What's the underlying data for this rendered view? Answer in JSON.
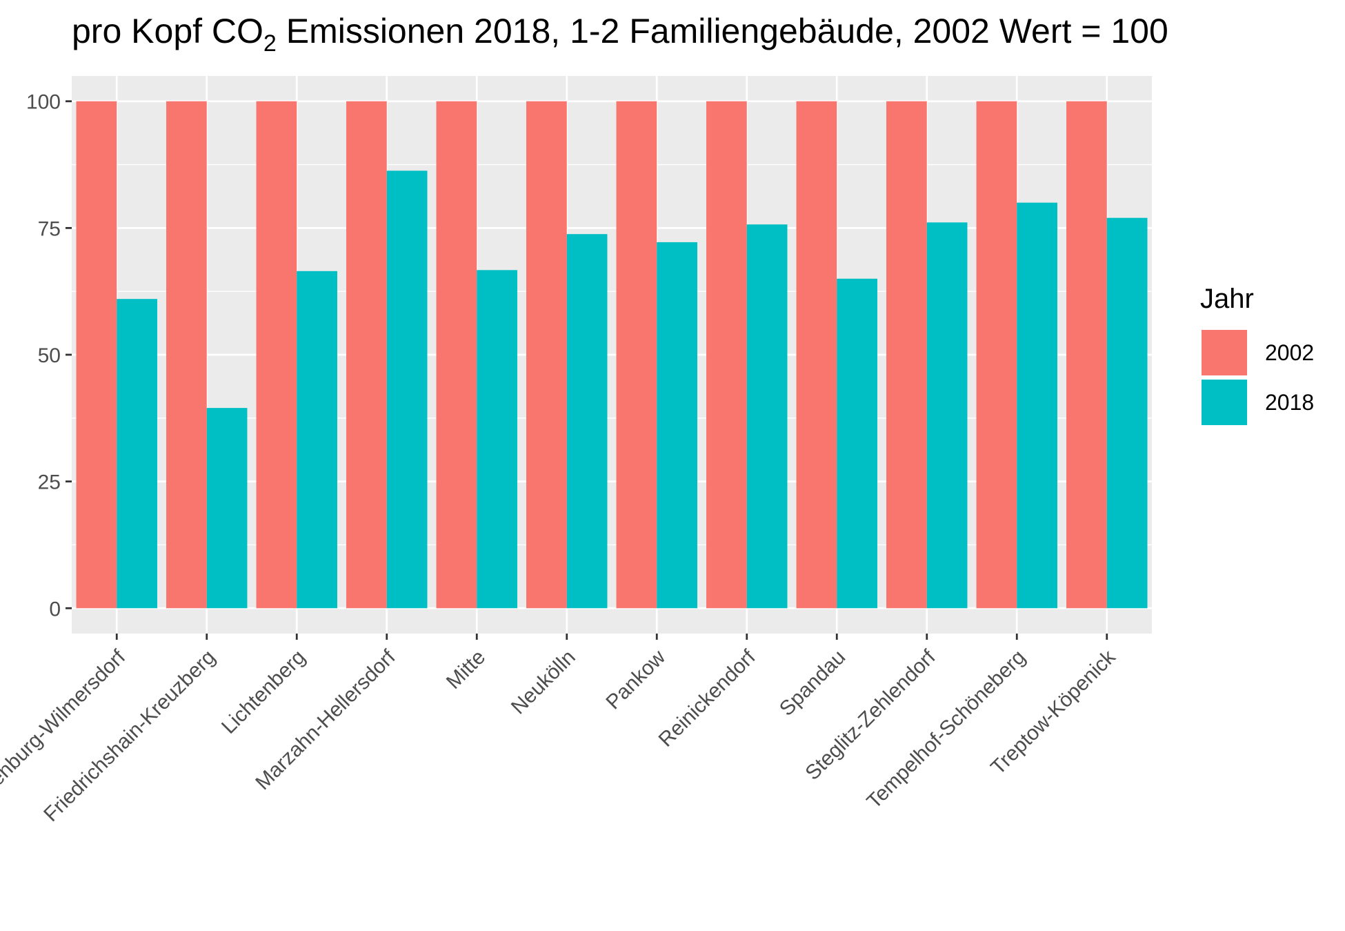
{
  "chart_data": {
    "type": "bar",
    "title_main": "pro Kopf CO",
    "title_sub": "2",
    "title_rest": " Emissionen 2018, 1-2 Familiengebäude, 2002 Wert = 100",
    "xlabel": "",
    "ylabel": "",
    "ylim": [
      -5,
      105
    ],
    "yticks": [
      0,
      25,
      50,
      75,
      100
    ],
    "grid": true,
    "legend_position": "right",
    "legend_title": "Jahr",
    "categories": [
      "Charlottenburg-Wilmersdorf",
      "Friedrichshain-Kreuzberg",
      "Lichtenberg",
      "Marzahn-Hellersdorf",
      "Mitte",
      "Neukölln",
      "Pankow",
      "Reinickendorf",
      "Spandau",
      "Steglitz-Zehlendorf",
      "Tempelhof-Schöneberg",
      "Treptow-Köpenick"
    ],
    "series": [
      {
        "name": "2002",
        "color": "#F8766D",
        "values": [
          100,
          100,
          100,
          100,
          100,
          100,
          100,
          100,
          100,
          100,
          100,
          100
        ]
      },
      {
        "name": "2018",
        "color": "#00BFC4",
        "values": [
          61,
          39.5,
          66.5,
          86.3,
          66.7,
          73.8,
          72.2,
          75.7,
          65,
          76.1,
          80,
          77
        ]
      }
    ],
    "colors": {
      "panel": "#EBEBEB",
      "grid": "#FFFFFF",
      "tick": "#333333",
      "tick_label": "#4D4D4D"
    }
  }
}
